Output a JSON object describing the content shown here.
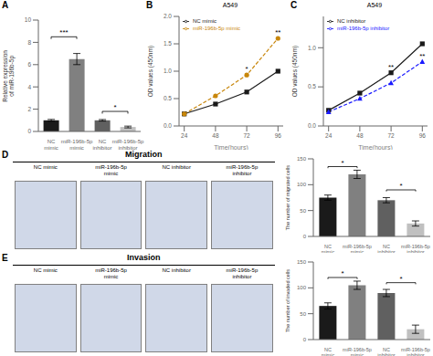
{
  "chart_data": [
    {
      "panel": "A",
      "type": "bar",
      "categories": [
        "NC\nmimic",
        "miR-196b-5p\nmimic",
        "NC\ninhibitor",
        "miR-196b-5p\ninhibitor"
      ],
      "values": [
        1.0,
        6.5,
        1.0,
        0.4
      ],
      "errors": [
        0.08,
        0.5,
        0.07,
        0.08
      ],
      "colors": [
        "#1a1a1a",
        "#808080",
        "#606060",
        "#c0c0c0"
      ],
      "y_label": "Relative expression\nof miR-196b-5p",
      "ylim": [
        0,
        10
      ],
      "yticks": [
        0,
        2,
        4,
        6,
        8,
        10
      ],
      "grid": false,
      "annotations": [
        {
          "from": "NC\nmimic",
          "to": "miR-196b-5p\nmimic",
          "y": 8.5,
          "text": "***"
        },
        {
          "from": "NC\ninhibitor",
          "to": "miR-196b-5p\ninhibitor",
          "y": 1.8,
          "text": "*"
        }
      ]
    },
    {
      "panel": "B",
      "type": "line",
      "title": "A549",
      "x_label": "Time(hours)",
      "y_label": "OD values (450nm)",
      "x": [
        24,
        48,
        72,
        96
      ],
      "xlim": [
        20,
        100
      ],
      "xticks": [
        24,
        48,
        72,
        96
      ],
      "ylim": [
        0,
        2.0
      ],
      "yticks": [
        {
          "value": 0,
          "label": "0.0"
        },
        {
          "value": 0.5,
          "label": "0.5"
        },
        {
          "value": 1.0,
          "label": "1.0"
        },
        {
          "value": 1.5,
          "label": "1.5"
        },
        {
          "value": 2.0,
          "label": "2.0"
        }
      ],
      "legend": "upper left",
      "grid": false,
      "series": [
        {
          "name": "NC mimic",
          "color": "#1a1a1a",
          "marker": "square",
          "line_style": "solid",
          "values": [
            0.22,
            0.4,
            0.62,
            1.0
          ]
        },
        {
          "name": "miR-196b-5p mimic",
          "color": "#c8860a",
          "marker": "circle",
          "line_style": "dashed",
          "values": [
            0.22,
            0.55,
            0.93,
            1.6
          ]
        }
      ],
      "annotations": [
        {
          "x": 72,
          "y": 0.93,
          "text": "*"
        },
        {
          "x": 96,
          "y": 1.6,
          "text": "**"
        }
      ]
    },
    {
      "panel": "C",
      "type": "line",
      "title": "A549",
      "x_label": "Time(hours)",
      "y_label": "OD values (450nm)",
      "x": [
        24,
        48,
        72,
        96
      ],
      "xlim": [
        20,
        100
      ],
      "xticks": [
        24,
        48,
        72,
        96
      ],
      "ylim": [
        0,
        1.4
      ],
      "yticks": [
        {
          "value": 0,
          "label": "0.0"
        },
        {
          "value": 0.5,
          "label": "0.5"
        },
        {
          "value": 1.0,
          "label": "1.0"
        }
      ],
      "legend": "upper left",
      "grid": false,
      "series": [
        {
          "name": "NC inhibitor",
          "color": "#1a1a1a",
          "marker": "square",
          "line_style": "solid",
          "values": [
            0.2,
            0.42,
            0.68,
            1.05
          ]
        },
        {
          "name": "miR-196b-5p inhibitor",
          "color": "#1a1aff",
          "marker": "triangle",
          "line_style": "dashed",
          "values": [
            0.18,
            0.35,
            0.55,
            0.82
          ]
        }
      ],
      "annotations": [
        {
          "x": 72,
          "y": 0.68,
          "text": "**"
        },
        {
          "x": 96,
          "y": 0.82,
          "text": "**"
        }
      ]
    },
    {
      "panel": "D",
      "type": "bar",
      "title": "Migration",
      "image_labels": [
        "NC mimic",
        "miR-196b-5p\nmimic",
        "NC inhibitor",
        "miR-196b-5p\ninhibitor"
      ],
      "categories": [
        "NC\nmimic",
        "miR-196b-5p\nmimic",
        "NC\ninhibitor",
        "miR-196b-5p\ninhibitor"
      ],
      "values": [
        75,
        120,
        70,
        25
      ],
      "errors": [
        5,
        8,
        5,
        5
      ],
      "colors": [
        "#1a1a1a",
        "#808080",
        "#606060",
        "#c0c0c0"
      ],
      "y_label": "The number of migrated cells",
      "ylim": [
        0,
        150
      ],
      "yticks": [
        0,
        50,
        100,
        150
      ],
      "grid": false,
      "annotations": [
        {
          "from": "NC\nmimic",
          "to": "miR-196b-5p\nmimic",
          "y": 135,
          "text": "*"
        },
        {
          "from": "NC\ninhibitor",
          "to": "miR-196b-5p\ninhibitor",
          "y": 90,
          "text": "*"
        }
      ]
    },
    {
      "panel": "E",
      "type": "bar",
      "title": "Invasion",
      "image_labels": [
        "NC mimic",
        "miR-196b-5p\nmimic",
        "NC inhibitor",
        "miR-196b-5p\ninhibitor"
      ],
      "categories": [
        "NC\nmimic",
        "miR-196b-5p\nmimic",
        "NC\ninhibitor",
        "miR-196b-5p\ninhibitor"
      ],
      "values": [
        65,
        105,
        90,
        20
      ],
      "errors": [
        6,
        8,
        7,
        8
      ],
      "colors": [
        "#1a1a1a",
        "#808080",
        "#606060",
        "#c0c0c0"
      ],
      "y_label": "The number of invaded cells",
      "ylim": [
        0,
        150
      ],
      "yticks": [
        0,
        50,
        100,
        150
      ],
      "grid": false,
      "annotations": [
        {
          "from": "NC\nmimic",
          "to": "miR-196b-5p\nmimic",
          "y": 120,
          "text": "*"
        },
        {
          "from": "NC\ninhibitor",
          "to": "miR-196b-5p\ninhibitor",
          "y": 110,
          "text": "*"
        }
      ]
    }
  ]
}
